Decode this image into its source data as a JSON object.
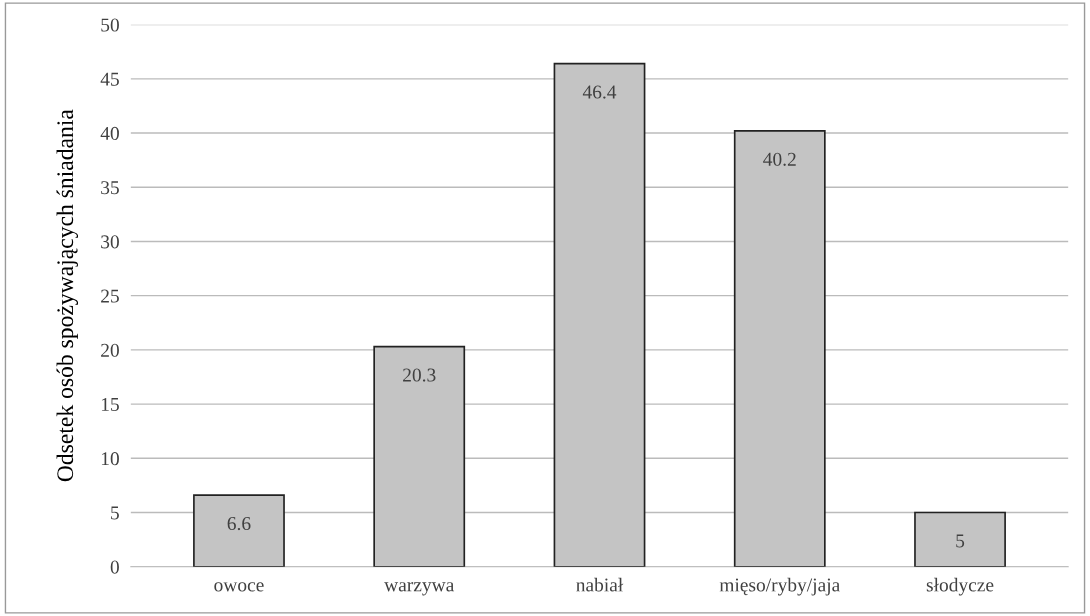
{
  "chart_data": {
    "type": "bar",
    "ylabel": "Odsetek osób spożywających śniadania",
    "categories": [
      "owoce",
      "warzywa",
      "nabiał",
      "mięso/ryby/jaja",
      "słodycze"
    ],
    "values": [
      6.6,
      20.3,
      46.4,
      40.2,
      5
    ],
    "value_labels": [
      "6.6",
      "20.3",
      "46.4",
      "40.2",
      "5"
    ],
    "color": "#c4c4c4",
    "ylim": [
      0,
      50
    ],
    "yticks": [
      0,
      5,
      10,
      15,
      20,
      25,
      30,
      35,
      40,
      45,
      50
    ],
    "grid": "y"
  }
}
